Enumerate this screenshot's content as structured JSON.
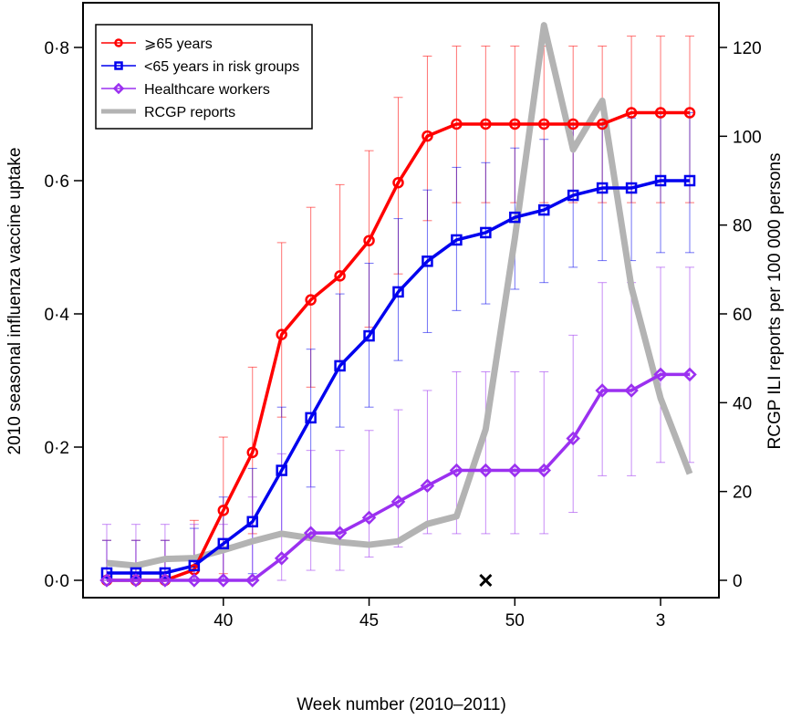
{
  "chart_data": {
    "type": "line",
    "xlabel": "Week number (2010–2011)",
    "ylabel": "2010 seasonal influenza vaccine uptake",
    "y2label": "RCGP ILI reports per 100 000 persons",
    "x": [
      36,
      37,
      38,
      39,
      40,
      41,
      42,
      43,
      44,
      45,
      46,
      47,
      48,
      49,
      50,
      51,
      52,
      1,
      2,
      3,
      4
    ],
    "x_ticks": [
      {
        "week": 40,
        "label": "40"
      },
      {
        "week": 45,
        "label": "45"
      },
      {
        "week": 50,
        "label": "50"
      },
      {
        "week": 3,
        "label": "3"
      }
    ],
    "ylim": [
      0,
      0.8
    ],
    "y_ticks": [
      "0·0",
      "0·2",
      "0·4",
      "0·6",
      "0·8"
    ],
    "y2lim": [
      0,
      120
    ],
    "y2_ticks": [
      "0",
      "20",
      "40",
      "60",
      "80",
      "100",
      "120"
    ],
    "legend_position": "top-left",
    "grid": false,
    "series": [
      {
        "name": "⩾65 years",
        "color": "#ff0000",
        "marker": "circle",
        "axis": "left",
        "values": [
          0,
          0,
          0,
          0.016,
          0.105,
          0.192,
          0.369,
          0.421,
          0.457,
          0.51,
          0.597,
          0.667,
          0.685,
          0.685,
          0.685,
          0.685,
          0.685,
          0.685,
          0.702,
          0.702,
          0.702
        ],
        "lower": [
          0,
          0,
          0,
          0,
          0.01,
          0.07,
          0.245,
          0.29,
          0.33,
          0.38,
          0.46,
          0.54,
          0.567,
          0.567,
          0.567,
          0.567,
          0.567,
          0.567,
          0.567,
          0.567,
          0.567
        ],
        "upper": [
          0.06,
          0.06,
          0.06,
          0.09,
          0.215,
          0.32,
          0.507,
          0.56,
          0.594,
          0.645,
          0.725,
          0.787,
          0.802,
          0.802,
          0.802,
          0.802,
          0.802,
          0.802,
          0.817,
          0.817,
          0.817
        ]
      },
      {
        "name": "<65 years in risk groups",
        "color": "#0000ee",
        "marker": "square",
        "axis": "left",
        "values": [
          0.011,
          0.011,
          0.011,
          0.022,
          0.055,
          0.088,
          0.165,
          0.244,
          0.322,
          0.367,
          0.433,
          0.479,
          0.511,
          0.522,
          0.545,
          0.556,
          0.578,
          0.589,
          0.589,
          0.6,
          0.6
        ],
        "lower": [
          0,
          0,
          0,
          0,
          0,
          0.01,
          0.07,
          0.14,
          0.23,
          0.26,
          0.33,
          0.372,
          0.405,
          0.415,
          0.437,
          0.447,
          0.47,
          0.48,
          0.48,
          0.492,
          0.492
        ],
        "upper": [
          0.06,
          0.06,
          0.06,
          0.078,
          0.125,
          0.168,
          0.26,
          0.347,
          0.43,
          0.476,
          0.543,
          0.586,
          0.62,
          0.627,
          0.649,
          0.662,
          0.686,
          0.686,
          0.694,
          0.702,
          0.702
        ]
      },
      {
        "name": "Healthcare workers",
        "color": "#9b30f0",
        "marker": "diamond",
        "axis": "left",
        "values": [
          0,
          0,
          0,
          0,
          0,
          0,
          0.033,
          0.071,
          0.071,
          0.094,
          0.118,
          0.142,
          0.165,
          0.165,
          0.165,
          0.165,
          0.213,
          0.285,
          0.285,
          0.309,
          0.309
        ],
        "lower": [
          0,
          0,
          0,
          0,
          0,
          0,
          0,
          0.015,
          0.015,
          0.035,
          0.05,
          0.07,
          0.07,
          0.07,
          0.07,
          0.07,
          0.102,
          0.157,
          0.157,
          0.177,
          0.177
        ],
        "upper": [
          0.084,
          0.084,
          0.084,
          0.084,
          0.084,
          0.125,
          0.19,
          0.195,
          0.195,
          0.225,
          0.256,
          0.285,
          0.313,
          0.313,
          0.313,
          0.313,
          0.368,
          0.447,
          0.447,
          0.47,
          0.47
        ]
      },
      {
        "name": "RCGP reports",
        "color": "#b3b3b3",
        "marker": "none",
        "axis": "right",
        "values": [
          3.9,
          3.3,
          4.8,
          5,
          6.8,
          8.8,
          10.5,
          9.5,
          8.6,
          8,
          8.8,
          12.7,
          14.4,
          34,
          77,
          125,
          97,
          108,
          66,
          41,
          24
        ]
      }
    ],
    "annotations": [
      {
        "mark": "cross",
        "week": 49,
        "value": 0
      }
    ]
  }
}
